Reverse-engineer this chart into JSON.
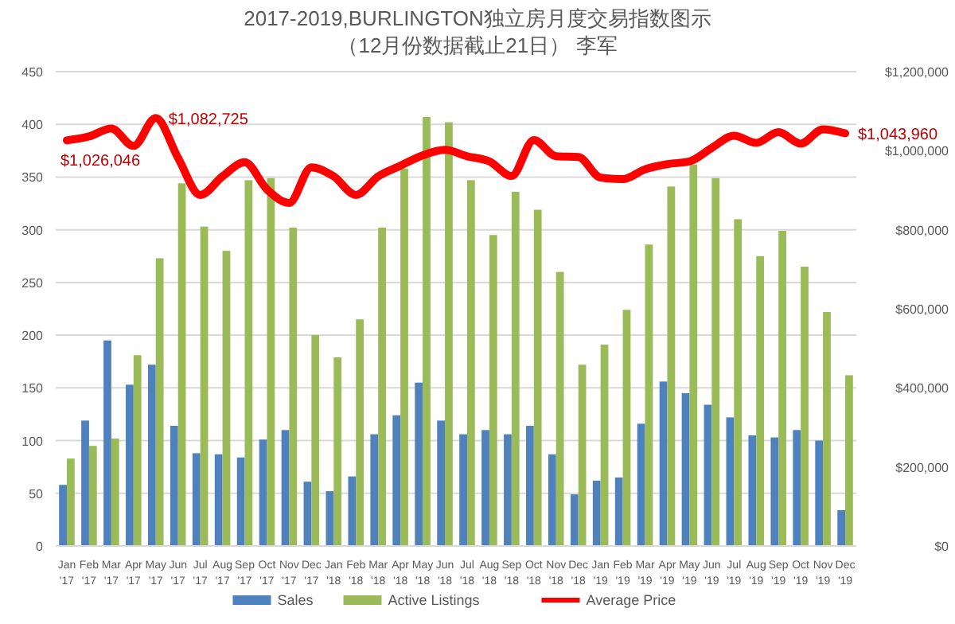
{
  "chart_data": {
    "type": "bar",
    "title": "2017-2019,BURLINGTON独立房月度交易指数图示",
    "subtitle": "（12月份数据截止21日） 李军",
    "categories": [
      "Jan '17",
      "Feb '17",
      "Mar '17",
      "Apr '17",
      "May '17",
      "Jun '17",
      "Jul '17",
      "Aug '17",
      "Sep '17",
      "Oct '17",
      "Nov '17",
      "Dec '17",
      "Jan '18",
      "Feb '18",
      "Mar '18",
      "Apr '18",
      "May '18",
      "Jun '18",
      "Jul '18",
      "Aug '18",
      "Sep '18",
      "Oct '18",
      "Nov '18",
      "Dec '18",
      "Jan '19",
      "Feb '19",
      "Mar '19",
      "Apr '19",
      "May '19",
      "Jun '19",
      "Jul '19",
      "Aug '19",
      "Sep '19",
      "Oct '19",
      "Nov '19",
      "Dec '19"
    ],
    "series": [
      {
        "name": "Sales",
        "color": "#4f81bd",
        "values": [
          58,
          119,
          195,
          153,
          172,
          114,
          88,
          87,
          84,
          101,
          110,
          61,
          52,
          66,
          106,
          124,
          155,
          119,
          106,
          110,
          106,
          114,
          87,
          49,
          62,
          65,
          116,
          156,
          145,
          134,
          122,
          105,
          103,
          110,
          100,
          34
        ]
      },
      {
        "name": "Active Listings",
        "color": "#9bbb59",
        "values": [
          83,
          95,
          102,
          181,
          273,
          344,
          303,
          280,
          347,
          349,
          302,
          200,
          179,
          215,
          302,
          358,
          407,
          402,
          347,
          295,
          336,
          319,
          260,
          172,
          191,
          224,
          286,
          341,
          362,
          349,
          310,
          275,
          299,
          265,
          222,
          162
        ]
      },
      {
        "name": "Average Price",
        "type": "line",
        "axis": "y2",
        "color": "#ff0000",
        "values": [
          1026046,
          1036000,
          1056000,
          1012000,
          1082725,
          982000,
          888000,
          935000,
          971000,
          902000,
          868000,
          958000,
          935000,
          888000,
          935000,
          962000,
          988000,
          1002000,
          986000,
          973000,
          936000,
          1027000,
          986000,
          984000,
          932000,
          928000,
          953000,
          966000,
          973000,
          1007000,
          1038000,
          1020000,
          1047000,
          1018000,
          1054000,
          1043960
        ],
        "value_labels": [
          "$1,026,046",
          null,
          null,
          null,
          "$1,082,725",
          null,
          null,
          null,
          null,
          null,
          null,
          null,
          null,
          null,
          null,
          null,
          null,
          null,
          null,
          null,
          null,
          null,
          null,
          null,
          null,
          null,
          null,
          null,
          null,
          null,
          null,
          null,
          null,
          null,
          null,
          "$1,043,960"
        ]
      }
    ],
    "ylim": [
      0,
      450
    ],
    "yticks": [
      0,
      50,
      100,
      150,
      200,
      250,
      300,
      350,
      400,
      450
    ],
    "y2lim": [
      0,
      1200000
    ],
    "y2ticks": [
      {
        "value": 0,
        "label": "$0"
      },
      {
        "value": 200000,
        "label": "$200,000"
      },
      {
        "value": 400000,
        "label": "$400,000"
      },
      {
        "value": 600000,
        "label": "$600,000"
      },
      {
        "value": 800000,
        "label": "$800,000"
      },
      {
        "value": 1000000,
        "label": "$1,000,000"
      },
      {
        "value": 1200000,
        "label": "$1,200,000"
      }
    ],
    "grid": "y",
    "legend": "bottom"
  }
}
